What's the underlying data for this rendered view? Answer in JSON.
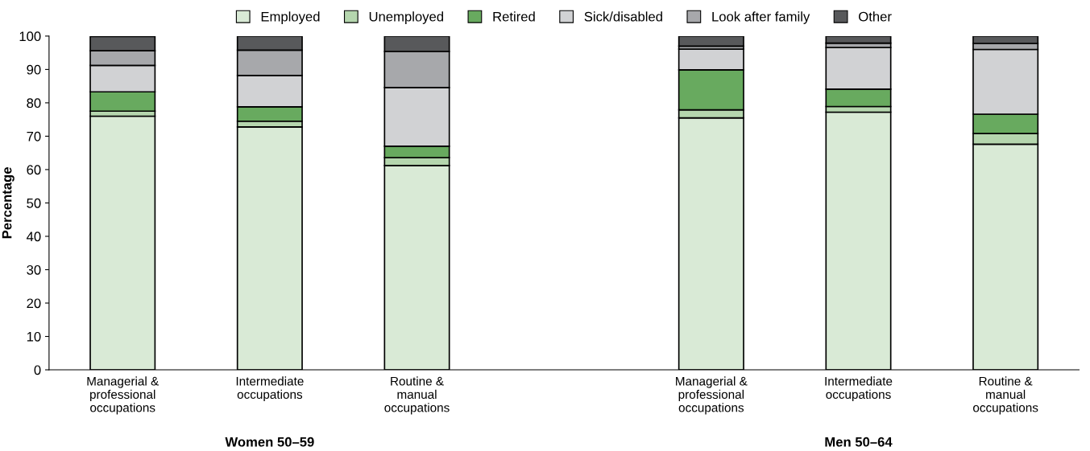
{
  "chart_data": {
    "type": "bar",
    "stacked": true,
    "ylabel": "Percentage",
    "categories": [
      "Managerial &\nprofessional\noccupations",
      "Intermediate\noccupations",
      "Routine &\nmanual\noccupations",
      null,
      "Managerial &\nprofessional\noccupations",
      "Intermediate\noccupations",
      "Routine &\nmanual\noccupations"
    ],
    "series": [
      {
        "name": "Employed",
        "color": "#d9ead6",
        "values": [
          76.0,
          72.8,
          61.2,
          null,
          75.5,
          77.2,
          67.6
        ]
      },
      {
        "name": "Unemployed",
        "color": "#b5d6ae",
        "values": [
          1.5,
          1.7,
          2.4,
          null,
          2.4,
          1.7,
          3.2
        ]
      },
      {
        "name": "Retired",
        "color": "#68aa5f",
        "values": [
          5.8,
          4.3,
          3.4,
          null,
          12.0,
          5.2,
          5.8
        ]
      },
      {
        "name": "Sick/disabled",
        "color": "#d1d2d4",
        "values": [
          7.9,
          9.4,
          17.6,
          null,
          6.2,
          12.5,
          19.4
        ]
      },
      {
        "name": "Look after family",
        "color": "#a7a8ab",
        "values": [
          4.4,
          7.6,
          10.8,
          null,
          0.9,
          1.3,
          1.8
        ]
      },
      {
        "name": "Other",
        "color": "#58595b",
        "values": [
          4.3,
          4.2,
          4.6,
          null,
          3.0,
          2.1,
          2.2
        ]
      }
    ],
    "ylim": [
      0,
      100
    ],
    "yticks": [
      0,
      10,
      20,
      30,
      40,
      50,
      60,
      70,
      80,
      90,
      100
    ],
    "annotations": [
      "Women 50–59",
      "Men 50–64"
    ],
    "legend": "top",
    "grid": false
  }
}
